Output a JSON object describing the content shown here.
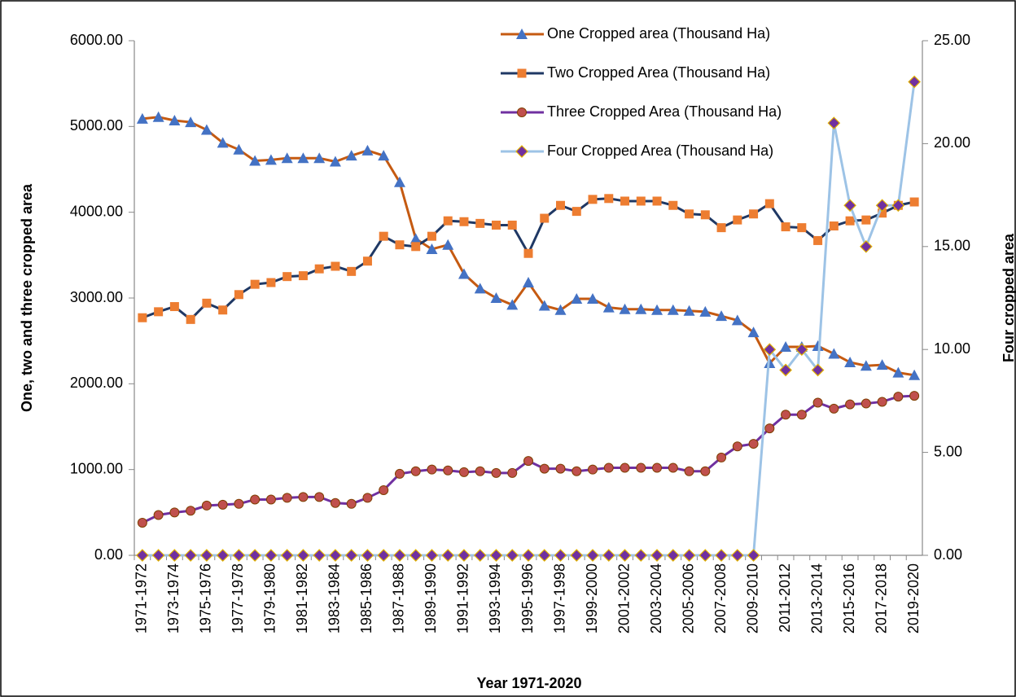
{
  "chart_data": {
    "type": "line",
    "x_label": "Year 1971-2020",
    "y_label": "One, two and three cropped area",
    "y2_label": "Four cropped area",
    "categories": [
      "1971-1972",
      null,
      "1973-1974",
      null,
      "1975-1976",
      null,
      "1977-1978",
      null,
      "1979-1980",
      null,
      "1981-1982",
      null,
      "1983-1984",
      null,
      "1985-1986",
      null,
      "1987-1988",
      null,
      "1989-1990",
      null,
      "1991-1992",
      null,
      "1993-1994",
      null,
      "1995-1996",
      null,
      "1997-1998",
      null,
      "1999-2000",
      null,
      "2001-2002",
      null,
      "2003-2004",
      null,
      "2005-2006",
      null,
      "2007-2008",
      null,
      "2009-2010",
      null,
      "2011-2012",
      null,
      "2013-2014",
      null,
      "2015-2016",
      null,
      "2017-2018",
      null,
      "2019-2020"
    ],
    "ylim": [
      0,
      6000
    ],
    "yticks": [
      {
        "value": 0,
        "label": "0.00"
      },
      {
        "value": 1000,
        "label": "1000.00"
      },
      {
        "value": 2000,
        "label": "2000.00"
      },
      {
        "value": 3000,
        "label": "3000.00"
      },
      {
        "value": 4000,
        "label": "4000.00"
      },
      {
        "value": 5000,
        "label": "5000.00"
      },
      {
        "value": 6000,
        "label": "6000.00"
      }
    ],
    "y2lim": [
      0,
      25
    ],
    "y2ticks": [
      {
        "value": 0,
        "label": "0.00"
      },
      {
        "value": 5,
        "label": "5.00"
      },
      {
        "value": 10,
        "label": "10.00"
      },
      {
        "value": 15,
        "label": "15.00"
      },
      {
        "value": 20,
        "label": "20.00"
      },
      {
        "value": 25,
        "label": "25.00"
      }
    ],
    "series": [
      {
        "name": "One Cropped area (Thousand Ha)",
        "color": "#C55A11",
        "marker": "triangle",
        "marker_color": "#4472C4",
        "values": [
          5090,
          5110,
          5070,
          5050,
          4960,
          4810,
          4730,
          4600,
          4610,
          4630,
          4630,
          4630,
          4590,
          4660,
          4720,
          4660,
          4350,
          3690,
          3570,
          3620,
          3280,
          3110,
          3000,
          2920,
          3180,
          2910,
          2860,
          2990,
          2990,
          2890,
          2870,
          2870,
          2860,
          2860,
          2850,
          2840,
          2790,
          2740,
          2600,
          2240,
          2430,
          2430,
          2440,
          2350,
          2250,
          2210,
          2220,
          2130,
          2100
        ]
      },
      {
        "name": "Two Cropped Area (Thousand Ha)",
        "color": "#1F3864",
        "marker": "square",
        "marker_color": "#ED7D31",
        "values": [
          2770,
          2840,
          2900,
          2750,
          2940,
          2860,
          3040,
          3160,
          3180,
          3250,
          3260,
          3340,
          3370,
          3310,
          3430,
          3720,
          3620,
          3600,
          3720,
          3900,
          3890,
          3870,
          3850,
          3850,
          3520,
          3930,
          4080,
          4010,
          4150,
          4160,
          4130,
          4130,
          4130,
          4080,
          3980,
          3970,
          3820,
          3910,
          3980,
          4100,
          3830,
          3820,
          3670,
          3840,
          3900,
          3910,
          3990,
          4080,
          4120
        ]
      },
      {
        "name": "Three Cropped Area (Thousand Ha)",
        "color": "#7030A0",
        "marker": "circle",
        "marker_color": "#C0504D",
        "values": [
          380,
          470,
          500,
          520,
          580,
          590,
          600,
          650,
          650,
          670,
          680,
          680,
          610,
          600,
          670,
          760,
          950,
          980,
          1000,
          990,
          970,
          980,
          960,
          960,
          1100,
          1010,
          1010,
          980,
          1000,
          1020,
          1020,
          1020,
          1020,
          1020,
          980,
          980,
          1140,
          1270,
          1300,
          1480,
          1640,
          1640,
          1780,
          1710,
          1760,
          1770,
          1790,
          1850,
          1860
        ]
      },
      {
        "name": "Four Cropped Area (Thousand Ha)",
        "color": "#9DC3E6",
        "marker": "diamond",
        "marker_color": "#7030A0",
        "axis": "y2",
        "values": [
          0,
          0,
          0,
          0,
          0,
          0,
          0,
          0,
          0,
          0,
          0,
          0,
          0,
          0,
          0,
          0,
          0,
          0,
          0,
          0,
          0,
          0,
          0,
          0,
          0,
          0,
          0,
          0,
          0,
          0,
          0,
          0,
          0,
          0,
          0,
          0,
          0,
          0,
          0,
          10,
          9,
          10,
          9,
          21,
          17,
          15,
          17,
          17,
          23
        ]
      }
    ]
  }
}
